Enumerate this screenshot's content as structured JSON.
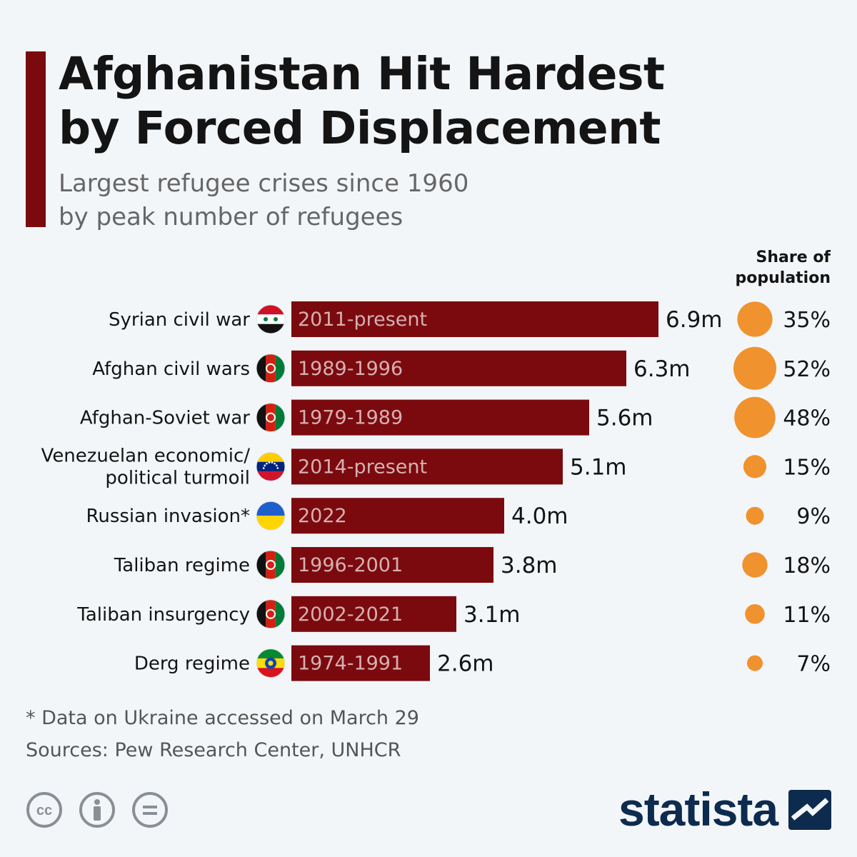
{
  "title_line1": "Afghanistan Hit Hardest",
  "title_line2": "by Forced Displacement",
  "subtitle_line1": "Largest refugee crises since 1960",
  "subtitle_line2": "by peak number of refugees",
  "share_header_line1": "Share of",
  "share_header_line2": "population",
  "footnote": "* Data on Ukraine accessed on March 29",
  "sources": "Sources: Pew Research Center, UNHCR",
  "brand": "statista",
  "colors": {
    "bar": "#7b0a0e",
    "period_text": "#d5b0b2",
    "bubble": "#f0922d",
    "accent": "#7b0a0e",
    "brand": "#0d2b4e"
  },
  "chart_data": {
    "type": "bar",
    "orientation": "horizontal",
    "title": "Afghanistan Hit Hardest by Forced Displacement",
    "unit": "million refugees",
    "xlim": [
      0,
      6.9
    ],
    "rows": [
      {
        "label_lines": [
          "Syrian civil war"
        ],
        "flag": "syria-flag-icon",
        "period": "2011-present",
        "value": 6.9,
        "value_label": "6.9m",
        "share": 35,
        "share_label": "35%"
      },
      {
        "label_lines": [
          "Afghan civil wars"
        ],
        "flag": "afghanistan-flag-icon",
        "period": "1989-1996",
        "value": 6.3,
        "value_label": "6.3m",
        "share": 52,
        "share_label": "52%"
      },
      {
        "label_lines": [
          "Afghan-Soviet war"
        ],
        "flag": "afghanistan-flag-icon",
        "period": "1979-1989",
        "value": 5.6,
        "value_label": "5.6m",
        "share": 48,
        "share_label": "48%"
      },
      {
        "label_lines": [
          "Venezuelan economic/",
          "political turmoil"
        ],
        "flag": "venezuela-flag-icon",
        "period": "2014-present",
        "value": 5.1,
        "value_label": "5.1m",
        "share": 15,
        "share_label": "15%"
      },
      {
        "label_lines": [
          "Russian invasion*"
        ],
        "flag": "ukraine-flag-icon",
        "period": "2022",
        "value": 4.0,
        "value_label": "4.0m",
        "share": 9,
        "share_label": "9%"
      },
      {
        "label_lines": [
          "Taliban regime"
        ],
        "flag": "afghanistan-flag-icon",
        "period": "1996-2001",
        "value": 3.8,
        "value_label": "3.8m",
        "share": 18,
        "share_label": "18%"
      },
      {
        "label_lines": [
          "Taliban insurgency"
        ],
        "flag": "afghanistan-flag-icon",
        "period": "2002-2021",
        "value": 3.1,
        "value_label": "3.1m",
        "share": 11,
        "share_label": "11%"
      },
      {
        "label_lines": [
          "Derg regime"
        ],
        "flag": "ethiopia-flag-icon",
        "period": "1974-1991",
        "value": 2.6,
        "value_label": "2.6m",
        "share": 7,
        "share_label": "7%"
      }
    ]
  }
}
